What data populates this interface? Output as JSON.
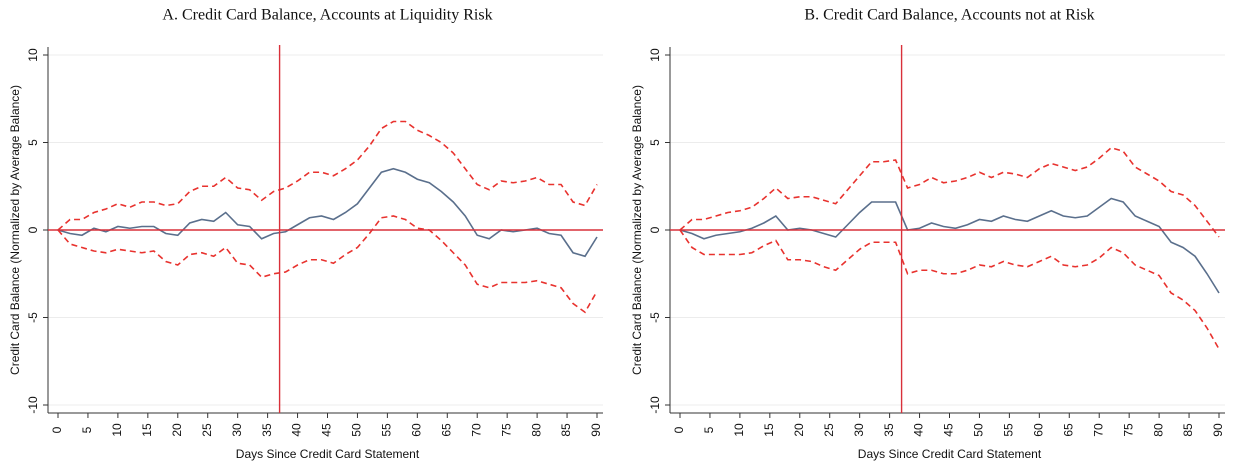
{
  "chart_data": [
    {
      "type": "line",
      "title": "A. Credit Card Balance, Accounts at Liquidity Risk",
      "xlabel": "Days Since Credit Card Statement",
      "ylabel": "Credit Card Balance (Normalized by Average Balance)",
      "x": [
        0,
        2,
        4,
        6,
        8,
        10,
        12,
        14,
        16,
        18,
        20,
        22,
        24,
        26,
        28,
        30,
        32,
        34,
        36,
        38,
        40,
        42,
        44,
        46,
        48,
        50,
        52,
        54,
        56,
        58,
        60,
        62,
        64,
        66,
        68,
        70,
        72,
        74,
        76,
        78,
        80,
        82,
        84,
        86,
        88,
        90
      ],
      "series": [
        {
          "color": "#5a6f8c",
          "dashed": false,
          "values": [
            0,
            -0.2,
            -0.3,
            0.1,
            -0.1,
            0.2,
            0.1,
            0.2,
            0.2,
            -0.2,
            -0.3,
            0.4,
            0.6,
            0.5,
            1.0,
            0.3,
            0.2,
            -0.5,
            -0.2,
            -0.1,
            0.3,
            0.7,
            0.8,
            0.6,
            1.0,
            1.5,
            2.4,
            3.3,
            3.5,
            3.3,
            2.9,
            2.7,
            2.2,
            1.6,
            0.8,
            -0.3,
            -0.5,
            0.0,
            -0.1,
            0.0,
            0.1,
            -0.2,
            -0.3,
            -1.3,
            -1.5,
            -0.4
          ]
        },
        {
          "color": "#e8322e",
          "dashed": true,
          "values": [
            0,
            0.6,
            0.6,
            1.0,
            1.2,
            1.5,
            1.3,
            1.6,
            1.6,
            1.4,
            1.5,
            2.2,
            2.5,
            2.5,
            3.0,
            2.4,
            2.3,
            1.7,
            2.2,
            2.4,
            2.8,
            3.3,
            3.3,
            3.1,
            3.5,
            4.0,
            4.8,
            5.8,
            6.2,
            6.2,
            5.7,
            5.4,
            5.0,
            4.4,
            3.5,
            2.6,
            2.3,
            2.8,
            2.7,
            2.8,
            3.0,
            2.6,
            2.6,
            1.6,
            1.4,
            2.6
          ]
        },
        {
          "color": "#e8322e",
          "dashed": true,
          "values": [
            0,
            -0.8,
            -1.0,
            -1.2,
            -1.3,
            -1.1,
            -1.2,
            -1.3,
            -1.2,
            -1.8,
            -2.0,
            -1.4,
            -1.3,
            -1.5,
            -1.0,
            -1.9,
            -2.0,
            -2.7,
            -2.5,
            -2.4,
            -2.0,
            -1.7,
            -1.7,
            -1.9,
            -1.4,
            -1.0,
            -0.2,
            0.7,
            0.8,
            0.6,
            0.1,
            0.0,
            -0.6,
            -1.3,
            -2.0,
            -3.1,
            -3.3,
            -3.0,
            -3.0,
            -3.0,
            -2.9,
            -3.1,
            -3.3,
            -4.2,
            -4.7,
            -3.5
          ]
        }
      ],
      "xlim": [
        0,
        90
      ],
      "xticks": [
        0,
        5,
        10,
        15,
        20,
        25,
        30,
        35,
        40,
        45,
        50,
        55,
        60,
        65,
        70,
        75,
        80,
        85,
        90
      ],
      "ylim": [
        -10,
        10
      ],
      "yticks": [
        -10,
        -5,
        0,
        5,
        10
      ],
      "grid": true,
      "vline": 37,
      "hline": 0,
      "ref_color": "#d9303a"
    },
    {
      "type": "line",
      "title": "B. Credit Card Balance, Accounts not at Risk",
      "xlabel": "Days Since Credit Card Statement",
      "ylabel": "Credit Card Balance (Normalized by Average Balance)",
      "x": [
        0,
        2,
        4,
        6,
        8,
        10,
        12,
        14,
        16,
        18,
        20,
        22,
        24,
        26,
        28,
        30,
        32,
        34,
        36,
        38,
        40,
        42,
        44,
        46,
        48,
        50,
        52,
        54,
        56,
        58,
        60,
        62,
        64,
        66,
        68,
        70,
        72,
        74,
        76,
        78,
        80,
        82,
        84,
        86,
        88,
        90
      ],
      "series": [
        {
          "color": "#5a6f8c",
          "dashed": false,
          "values": [
            0,
            -0.2,
            -0.5,
            -0.3,
            -0.2,
            -0.1,
            0.1,
            0.4,
            0.8,
            0.0,
            0.1,
            0.0,
            -0.2,
            -0.4,
            0.3,
            1.0,
            1.6,
            1.6,
            1.6,
            0.0,
            0.1,
            0.4,
            0.2,
            0.1,
            0.3,
            0.6,
            0.5,
            0.8,
            0.6,
            0.5,
            0.8,
            1.1,
            0.8,
            0.7,
            0.8,
            1.3,
            1.8,
            1.6,
            0.8,
            0.5,
            0.2,
            -0.7,
            -1.0,
            -1.5,
            -2.5,
            -3.6
          ]
        },
        {
          "color": "#e8322e",
          "dashed": true,
          "values": [
            0,
            0.6,
            0.6,
            0.8,
            1.0,
            1.1,
            1.3,
            1.8,
            2.4,
            1.8,
            1.9,
            1.9,
            1.7,
            1.5,
            2.3,
            3.1,
            3.9,
            3.9,
            4.0,
            2.4,
            2.6,
            3.0,
            2.7,
            2.8,
            3.0,
            3.3,
            3.0,
            3.3,
            3.2,
            3.0,
            3.5,
            3.8,
            3.6,
            3.4,
            3.6,
            4.1,
            4.7,
            4.5,
            3.6,
            3.2,
            2.8,
            2.2,
            2.0,
            1.4,
            0.5,
            -0.4
          ]
        },
        {
          "color": "#e8322e",
          "dashed": true,
          "values": [
            0,
            -1.0,
            -1.4,
            -1.4,
            -1.4,
            -1.4,
            -1.3,
            -0.9,
            -0.6,
            -1.7,
            -1.7,
            -1.8,
            -2.1,
            -2.3,
            -1.7,
            -1.1,
            -0.7,
            -0.7,
            -0.7,
            -2.5,
            -2.3,
            -2.3,
            -2.5,
            -2.5,
            -2.3,
            -2.0,
            -2.1,
            -1.8,
            -2.0,
            -2.1,
            -1.8,
            -1.5,
            -2.0,
            -2.1,
            -2.0,
            -1.6,
            -1.0,
            -1.3,
            -2.0,
            -2.3,
            -2.6,
            -3.6,
            -4.0,
            -4.6,
            -5.6,
            -6.8
          ]
        }
      ],
      "xlim": [
        0,
        90
      ],
      "xticks": [
        0,
        5,
        10,
        15,
        20,
        25,
        30,
        35,
        40,
        45,
        50,
        55,
        60,
        65,
        70,
        75,
        80,
        85,
        90
      ],
      "ylim": [
        -10,
        10
      ],
      "yticks": [
        -10,
        -5,
        0,
        5,
        10
      ],
      "grid": true,
      "vline": 37,
      "hline": 0,
      "ref_color": "#d9303a"
    }
  ]
}
